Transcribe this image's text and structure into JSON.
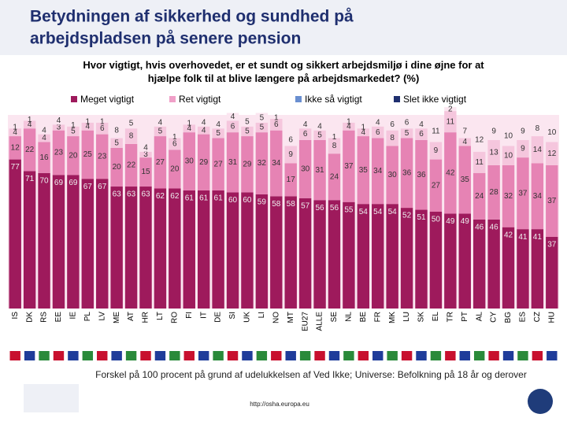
{
  "header": {
    "title_line1": "Betydningen af sikkerhed og sundhed på",
    "title_line2": "arbejdspladsen på senere pension"
  },
  "chart_data": {
    "type": "bar",
    "stacked": true,
    "title": "Hvor vigtigt, hvis overhovedet, er et sundt og sikkert arbejdsmiljø i dine øjne for at hjælpe folk til at blive længere på arbejdsmarkedet? (%)",
    "categories": [
      "IS",
      "DK",
      "RS",
      "EE",
      "IE",
      "PL",
      "LV",
      "ME",
      "AT",
      "HR",
      "LT",
      "RO",
      "FI",
      "IT",
      "DE",
      "SI",
      "UK",
      "LI",
      "NO",
      "MT",
      "EU27",
      "ALLE",
      "SE",
      "NL",
      "BE",
      "FR",
      "MK",
      "LU",
      "SK",
      "EL",
      "TR",
      "PT",
      "AL",
      "CY",
      "BG",
      "ES",
      "CZ",
      "HU"
    ],
    "ylim": [
      0,
      100
    ],
    "series": [
      {
        "name": "Meget vigtigt",
        "color": "#9e1a5c",
        "values": [
          77,
          71,
          70,
          69,
          69,
          67,
          67,
          63,
          63,
          63,
          62,
          62,
          61,
          61,
          61,
          60,
          60,
          59,
          58,
          58,
          57,
          56,
          56,
          55,
          54,
          54,
          54,
          52,
          51,
          50,
          49,
          49,
          46,
          46,
          42,
          41,
          41,
          37
        ]
      },
      {
        "name": "Ret vigtigt",
        "color": "#e683b4",
        "values": [
          12,
          22,
          16,
          23,
          20,
          25,
          23,
          20,
          22,
          15,
          27,
          20,
          30,
          29,
          27,
          31,
          29,
          32,
          34,
          17,
          30,
          31,
          24,
          37,
          35,
          34,
          30,
          36,
          36,
          27,
          42,
          35,
          24,
          28,
          32,
          37,
          34,
          37
        ]
      },
      {
        "name": "Ikke så vigtigt",
        "color": "#f5c6dd",
        "values": [
          4,
          4,
          4,
          3,
          5,
          4,
          6,
          5,
          8,
          3,
          5,
          6,
          4,
          4,
          5,
          6,
          5,
          5,
          6,
          9,
          6,
          5,
          8,
          4,
          4,
          6,
          8,
          5,
          6,
          9,
          11,
          4,
          11,
          13,
          10,
          9,
          14,
          12
        ]
      },
      {
        "name": "Slet ikke vigtigt",
        "color": "#fbe6f0",
        "values": [
          1,
          1,
          4,
          4,
          1,
          1,
          1,
          8,
          5,
          4,
          4,
          1,
          1,
          4,
          4,
          4,
          5,
          5,
          1,
          6,
          4,
          4,
          1,
          1,
          1,
          4,
          6,
          6,
          4,
          11,
          2,
          7,
          12,
          9,
          10,
          9,
          8,
          10
        ]
      }
    ],
    "footnote": "Forskel på 100 procent på grund af udelukkelsen af Ved Ikke; Universe: Befolkning på 18 år og derover",
    "url": "http://osha.europa.eu"
  }
}
